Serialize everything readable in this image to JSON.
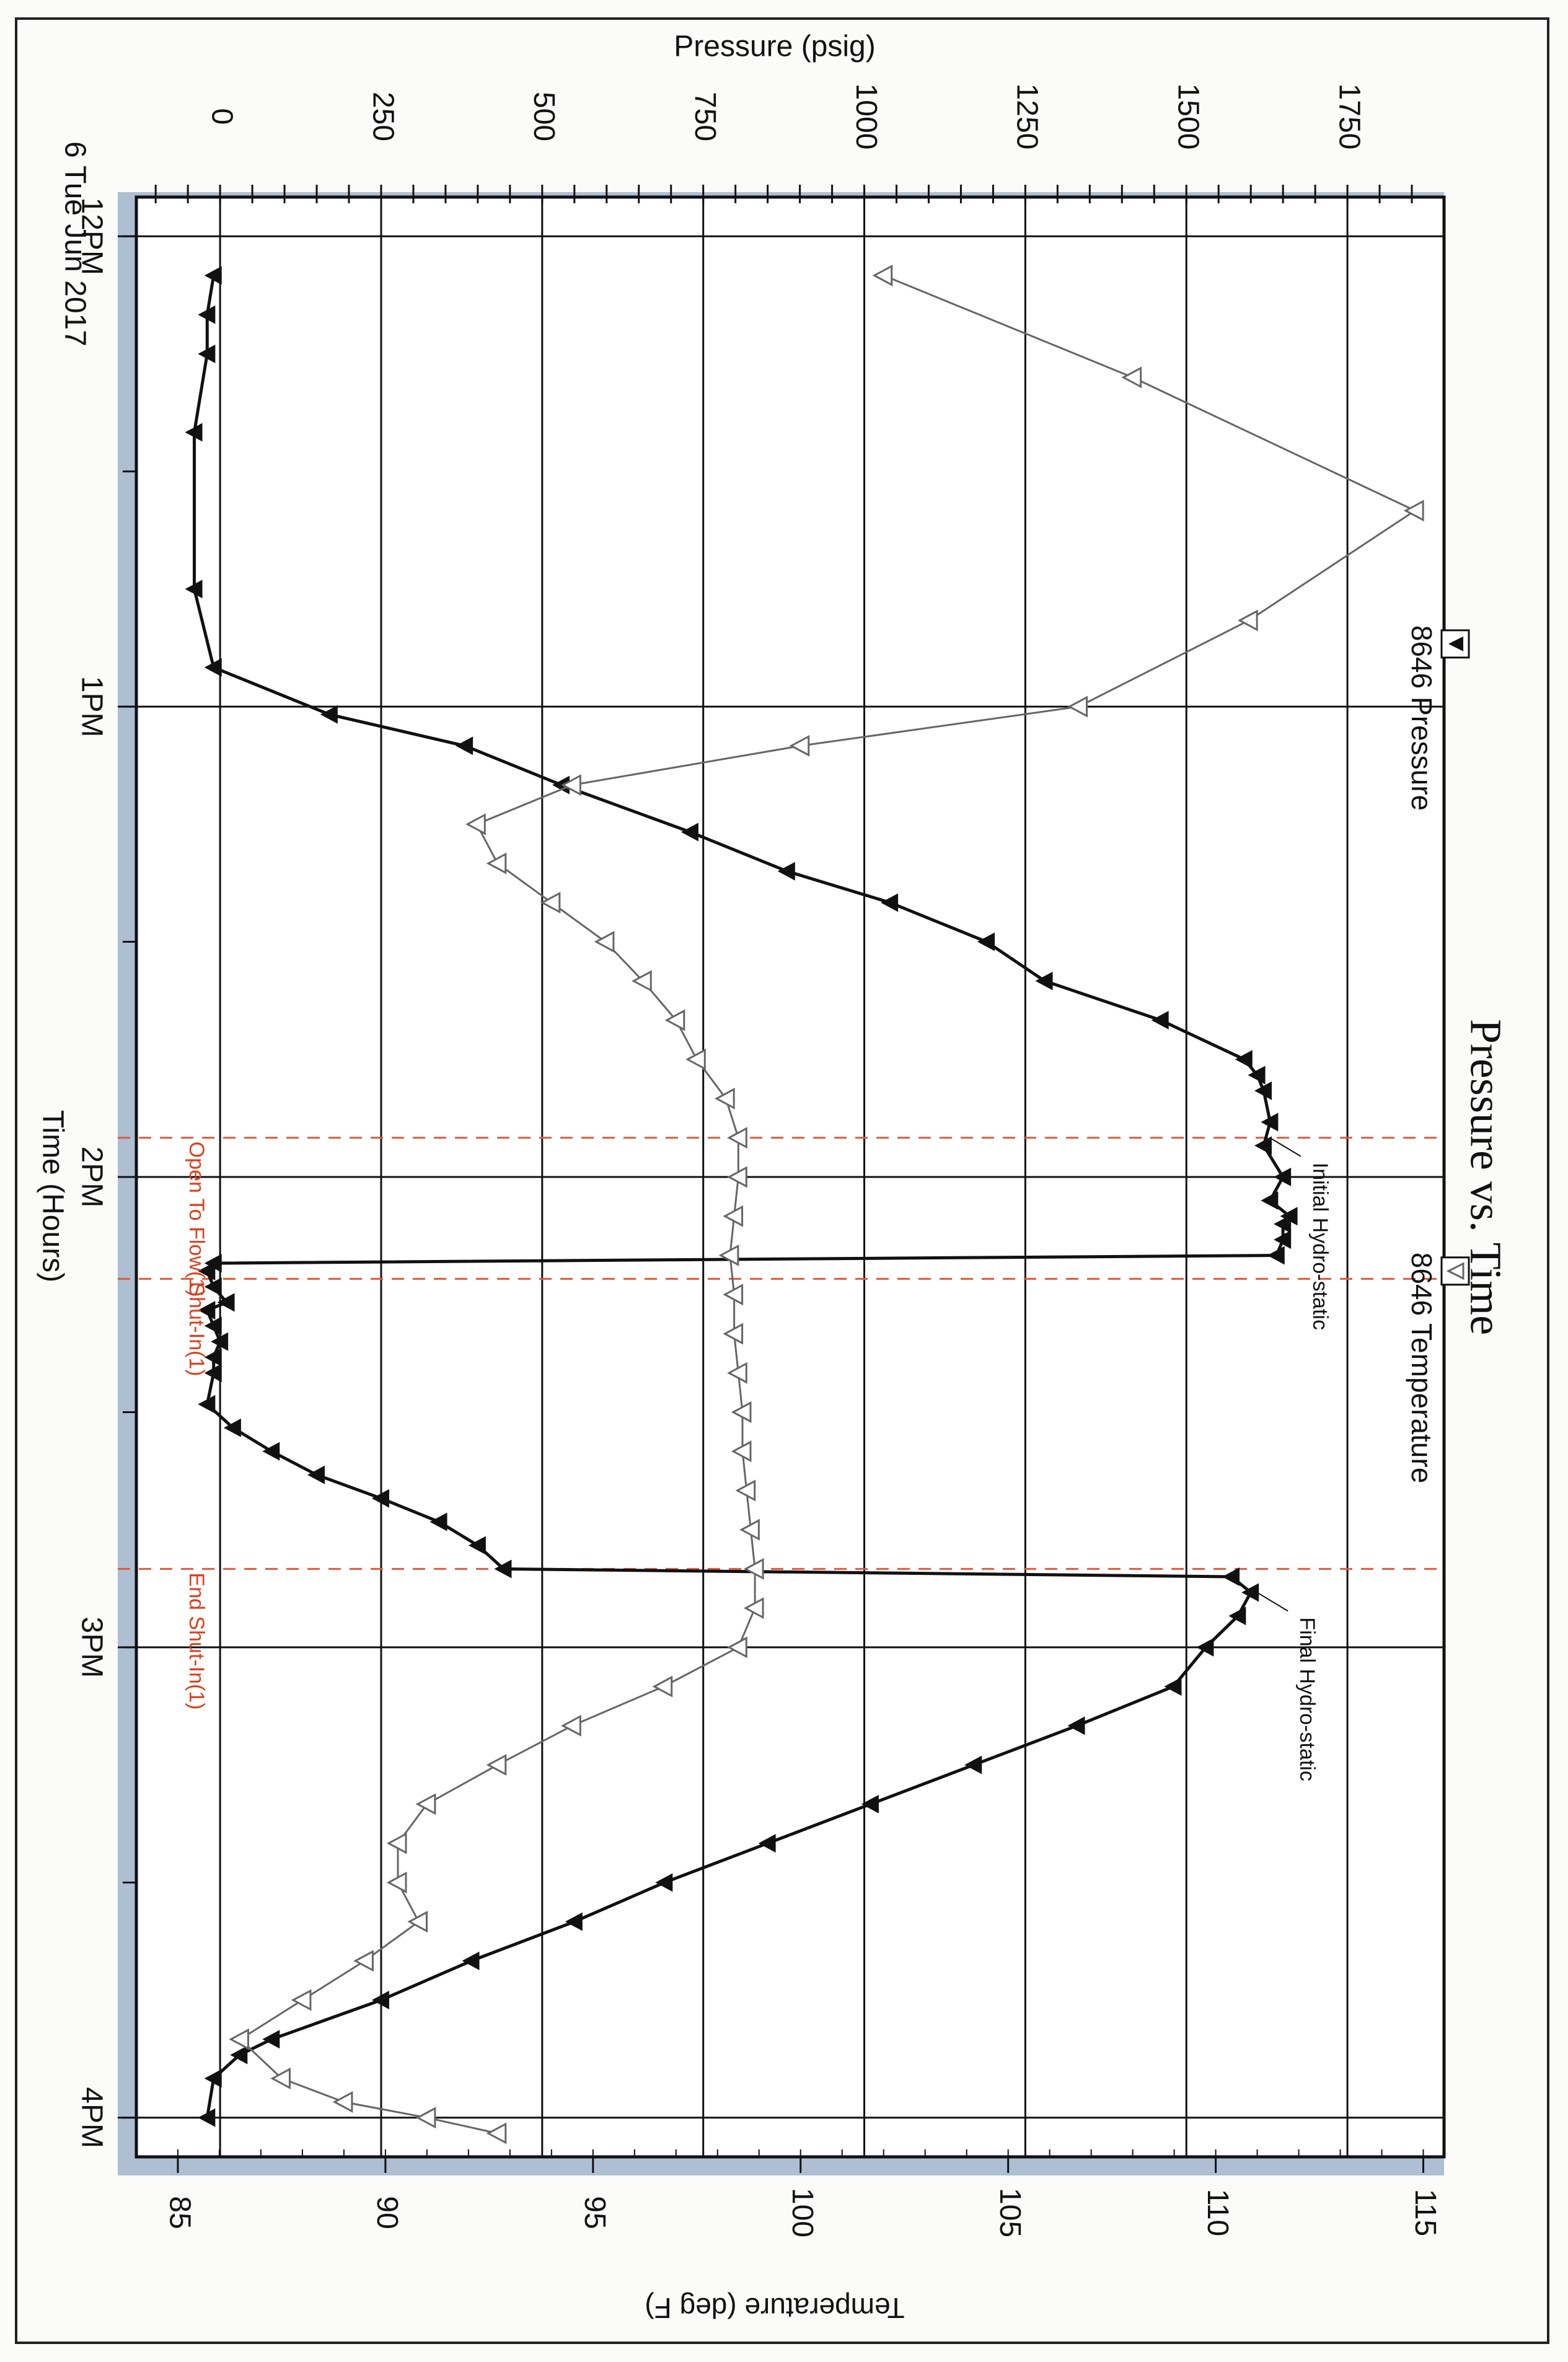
{
  "chart_data": {
    "type": "line",
    "title": "Pressure vs. Time",
    "xlabel": "Time (Hours)",
    "ylabel": "Pressure (psig)",
    "y2label": "Temperature (deg F)",
    "date_label": "6 Tue Jun 2017",
    "x_ticks": [
      "12PM",
      "1PM",
      "2PM",
      "3PM",
      "4PM"
    ],
    "xlim": [
      "11:55",
      "16:05"
    ],
    "ylim": [
      -130,
      1900
    ],
    "y_ticks": [
      0,
      250,
      500,
      750,
      1000,
      1250,
      1500,
      1750
    ],
    "y2lim": [
      84,
      115.5
    ],
    "y2_ticks": [
      85,
      90,
      95,
      100,
      105,
      110,
      115
    ],
    "grid": true,
    "legend": [
      {
        "label": "8646 Pressure",
        "marker": "filled-triangle-down",
        "color": "#111111"
      },
      {
        "label": "8646 Temperature",
        "marker": "open-triangle-down",
        "color": "#666666"
      }
    ],
    "series": [
      {
        "name": "8646 Pressure",
        "axis": "left",
        "color": "#111111",
        "points": [
          [
            "12:05",
            -10
          ],
          [
            "12:10",
            -20
          ],
          [
            "12:15",
            -20
          ],
          [
            "12:25",
            -40
          ],
          [
            "12:45",
            -40
          ],
          [
            "12:55",
            -10
          ],
          [
            "13:01",
            170
          ],
          [
            "13:05",
            380
          ],
          [
            "13:10",
            530
          ],
          [
            "13:16",
            730
          ],
          [
            "13:21",
            880
          ],
          [
            "13:25",
            1040
          ],
          [
            "13:30",
            1190
          ],
          [
            "13:35",
            1280
          ],
          [
            "13:40",
            1460
          ],
          [
            "13:45",
            1590
          ],
          [
            "13:47",
            1610
          ],
          [
            "13:49",
            1620
          ],
          [
            "13:53",
            1630
          ],
          [
            "13:56",
            1620
          ],
          [
            "14:00",
            1650
          ],
          [
            "14:03",
            1630
          ],
          [
            "14:05",
            1660
          ],
          [
            "14:06",
            1650
          ],
          [
            "14:08",
            1650
          ],
          [
            "14:10",
            1640
          ],
          [
            "14:11",
            -10
          ],
          [
            "14:12",
            -20
          ],
          [
            "14:14",
            -10
          ],
          [
            "14:16",
            10
          ],
          [
            "14:17",
            -20
          ],
          [
            "14:19",
            -10
          ],
          [
            "14:21",
            0
          ],
          [
            "14:23",
            -10
          ],
          [
            "14:25",
            -10
          ],
          [
            "14:29",
            -20
          ],
          [
            "14:32",
            20
          ],
          [
            "14:35",
            80
          ],
          [
            "14:38",
            150
          ],
          [
            "14:41",
            250
          ],
          [
            "14:44",
            340
          ],
          [
            "14:47",
            400
          ],
          [
            "14:50",
            440
          ],
          [
            "14:51",
            1570
          ],
          [
            "14:53",
            1600
          ],
          [
            "14:56",
            1580
          ],
          [
            "15:00",
            1530
          ],
          [
            "15:05",
            1480
          ],
          [
            "15:10",
            1330
          ],
          [
            "15:15",
            1170
          ],
          [
            "15:20",
            1010
          ],
          [
            "15:25",
            850
          ],
          [
            "15:30",
            690
          ],
          [
            "15:35",
            550
          ],
          [
            "15:40",
            390
          ],
          [
            "15:45",
            250
          ],
          [
            "15:50",
            80
          ],
          [
            "15:52",
            30
          ],
          [
            "15:55",
            -10
          ],
          [
            "16:00",
            -20
          ]
        ]
      },
      {
        "name": "8646 Temperature",
        "axis": "right",
        "color": "#666666",
        "points": [
          [
            "12:05",
            102.0
          ],
          [
            "12:18",
            108.0
          ],
          [
            "12:35",
            114.8
          ],
          [
            "12:49",
            110.8
          ],
          [
            "13:00",
            106.7
          ],
          [
            "13:05",
            100.0
          ],
          [
            "13:10",
            94.5
          ],
          [
            "13:15",
            92.2
          ],
          [
            "13:20",
            92.7
          ],
          [
            "13:25",
            94.0
          ],
          [
            "13:30",
            95.3
          ],
          [
            "13:35",
            96.2
          ],
          [
            "13:40",
            97.0
          ],
          [
            "13:45",
            97.5
          ],
          [
            "13:50",
            98.2
          ],
          [
            "13:55",
            98.5
          ],
          [
            "14:00",
            98.5
          ],
          [
            "14:05",
            98.4
          ],
          [
            "14:10",
            98.3
          ],
          [
            "14:15",
            98.4
          ],
          [
            "14:20",
            98.4
          ],
          [
            "14:25",
            98.5
          ],
          [
            "14:30",
            98.6
          ],
          [
            "14:35",
            98.6
          ],
          [
            "14:40",
            98.7
          ],
          [
            "14:45",
            98.8
          ],
          [
            "14:50",
            98.9
          ],
          [
            "14:55",
            98.9
          ],
          [
            "15:00",
            98.5
          ],
          [
            "15:05",
            96.7
          ],
          [
            "15:10",
            94.5
          ],
          [
            "15:15",
            92.7
          ],
          [
            "15:20",
            91.0
          ],
          [
            "15:25",
            90.3
          ],
          [
            "15:30",
            90.3
          ],
          [
            "15:35",
            90.8
          ],
          [
            "15:40",
            89.5
          ],
          [
            "15:45",
            88.0
          ],
          [
            "15:50",
            86.5
          ],
          [
            "15:55",
            87.5
          ],
          [
            "15:58",
            89.0
          ],
          [
            "16:00",
            91.0
          ],
          [
            "16:02",
            92.7
          ]
        ]
      }
    ],
    "annotations": [
      {
        "label": "Initial Hydro-static",
        "x": "13:55",
        "y": 1620
      },
      {
        "label": "Final Hydro-static",
        "x": "14:53",
        "y": 1600
      }
    ],
    "events": [
      {
        "label": "Open To Flow(1)",
        "x": "13:55"
      },
      {
        "label": "Shut-In(1)",
        "x": "14:13"
      },
      {
        "label": "End Shut-In(1)",
        "x": "14:50"
      }
    ]
  }
}
